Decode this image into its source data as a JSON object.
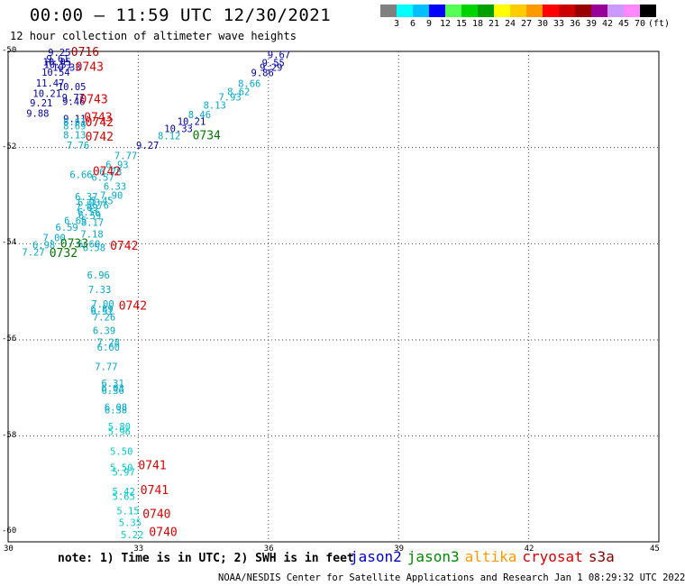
{
  "header": {
    "title": "00:00 – 11:59 UTC 12/30/2021",
    "subtitle": "12 hour collection of altimeter wave heights"
  },
  "colorbar": {
    "colors": [
      "#808080",
      "#00ffff",
      "#00bfff",
      "#0000ff",
      "#55ff55",
      "#00d400",
      "#00a000",
      "#ffff00",
      "#ffcc00",
      "#ff9900",
      "#ff0000",
      "#cc0000",
      "#990000",
      "#990099",
      "#cc99ff",
      "#ff88ff",
      "#000000"
    ],
    "labels": [
      "3",
      "6",
      "9",
      "12",
      "15",
      "18",
      "21",
      "24",
      "27",
      "30",
      "33",
      "36",
      "39",
      "42",
      "45",
      "70",
      "(ft)"
    ]
  },
  "axes": {
    "lat_labels": [
      "-50",
      "-52",
      "-54",
      "-56",
      "-58",
      "-60"
    ],
    "lon_labels": [
      "30",
      "33",
      "36",
      "39",
      "42",
      "45"
    ]
  },
  "map_data": {
    "extent": {
      "lon": [
        30,
        45
      ],
      "lat": [
        -60.2,
        -50
      ]
    },
    "swh_points": [
      {
        "text": "9.25",
        "lon": 30.92,
        "lat": -50.02,
        "color": "#0000aa"
      },
      {
        "text": "9.61",
        "lon": 30.88,
        "lat": -50.15,
        "color": "#0000aa"
      },
      {
        "text": "10.05",
        "lon": 30.8,
        "lat": -50.22,
        "color": "#0000aa"
      },
      {
        "text": "10.51",
        "lon": 30.82,
        "lat": -50.27,
        "color": "#0000aa"
      },
      {
        "text": "10.33",
        "lon": 31.02,
        "lat": -50.33,
        "color": "#0000aa"
      },
      {
        "text": "10.54",
        "lon": 30.77,
        "lat": -50.43,
        "color": "#0000aa"
      },
      {
        "text": "11.47",
        "lon": 30.64,
        "lat": -50.66,
        "color": "#0000aa"
      },
      {
        "text": "10.05",
        "lon": 31.14,
        "lat": -50.73,
        "color": "#0000aa"
      },
      {
        "text": "10.21",
        "lon": 30.57,
        "lat": -50.87,
        "color": "#0000aa"
      },
      {
        "text": "9.77",
        "lon": 31.24,
        "lat": -50.96,
        "color": "#0000aa"
      },
      {
        "text": "9.46",
        "lon": 31.25,
        "lat": -51.04,
        "color": "#0000aa"
      },
      {
        "text": "9.21",
        "lon": 30.5,
        "lat": -51.07,
        "color": "#0000aa"
      },
      {
        "text": "9.88",
        "lon": 30.42,
        "lat": -51.28,
        "color": "#0000aa"
      },
      {
        "text": "9.11",
        "lon": 31.27,
        "lat": -51.4,
        "color": "#0000aa"
      },
      {
        "text": "8.61",
        "lon": 31.27,
        "lat": -51.46,
        "color": "#00aacc"
      },
      {
        "text": "8.69",
        "lon": 31.27,
        "lat": -51.55,
        "color": "#00aacc"
      },
      {
        "text": "8.13",
        "lon": 31.27,
        "lat": -51.73,
        "color": "#00aacc"
      },
      {
        "text": "7.76",
        "lon": 31.35,
        "lat": -51.95,
        "color": "#00aacc"
      },
      {
        "text": "6.66",
        "lon": 31.42,
        "lat": -52.56,
        "color": "#00aacc"
      },
      {
        "text": "6.37",
        "lon": 31.54,
        "lat": -53.02,
        "color": "#00aacc"
      },
      {
        "text": "7.90",
        "lon": 32.12,
        "lat": -52.99,
        "color": "#00aacc"
      },
      {
        "text": "6.03",
        "lon": 31.6,
        "lat": -53.14,
        "color": "#00aacc"
      },
      {
        "text": "5.45",
        "lon": 31.9,
        "lat": -53.1,
        "color": "#00aacc"
      },
      {
        "text": "7.69",
        "lon": 31.55,
        "lat": -53.24,
        "color": "#00aacc"
      },
      {
        "text": "5.76",
        "lon": 31.8,
        "lat": -53.2,
        "color": "#00aacc"
      },
      {
        "text": "6.56",
        "lon": 31.6,
        "lat": -53.34,
        "color": "#00aacc"
      },
      {
        "text": "6.59",
        "lon": 31.62,
        "lat": -53.41,
        "color": "#00aacc"
      },
      {
        "text": "6.65",
        "lon": 31.29,
        "lat": -53.52,
        "color": "#00aacc"
      },
      {
        "text": "8.17",
        "lon": 31.68,
        "lat": -53.55,
        "color": "#00aacc"
      },
      {
        "text": "6.59",
        "lon": 31.09,
        "lat": -53.66,
        "color": "#00aacc"
      },
      {
        "text": "7.18",
        "lon": 31.67,
        "lat": -53.8,
        "color": "#00aacc"
      },
      {
        "text": "7.00",
        "lon": 30.8,
        "lat": -53.87,
        "color": "#00aacc"
      },
      {
        "text": "6.98",
        "lon": 30.56,
        "lat": -54.02,
        "color": "#00aacc"
      },
      {
        "text": "6.60",
        "lon": 31.6,
        "lat": -54.0,
        "color": "#00aacc"
      },
      {
        "text": "6.58",
        "lon": 31.72,
        "lat": -54.08,
        "color": "#00aacc"
      },
      {
        "text": "7.27",
        "lon": 30.32,
        "lat": -54.17,
        "color": "#00aacc"
      },
      {
        "text": "6.96",
        "lon": 31.82,
        "lat": -54.65,
        "color": "#00aacc"
      },
      {
        "text": "7.33",
        "lon": 31.85,
        "lat": -54.95,
        "color": "#00aacc"
      },
      {
        "text": "7.00",
        "lon": 31.92,
        "lat": -55.25,
        "color": "#00aacc"
      },
      {
        "text": "6.89",
        "lon": 31.9,
        "lat": -55.35,
        "color": "#00aacc"
      },
      {
        "text": "6.51",
        "lon": 31.9,
        "lat": -55.4,
        "color": "#00aacc"
      },
      {
        "text": "7.26",
        "lon": 31.95,
        "lat": -55.52,
        "color": "#00aacc"
      },
      {
        "text": "6.39",
        "lon": 31.95,
        "lat": -55.8,
        "color": "#00aacc"
      },
      {
        "text": "7.28",
        "lon": 32.05,
        "lat": -56.05,
        "color": "#00aacc"
      },
      {
        "text": "6.60",
        "lon": 32.05,
        "lat": -56.15,
        "color": "#00aacc"
      },
      {
        "text": "7.77",
        "lon": 32.0,
        "lat": -56.55,
        "color": "#00aacc"
      },
      {
        "text": "6.31",
        "lon": 32.15,
        "lat": -56.9,
        "color": "#00aacc"
      },
      {
        "text": "6.03",
        "lon": 32.15,
        "lat": -57.0,
        "color": "#00aacc"
      },
      {
        "text": "6.36",
        "lon": 32.15,
        "lat": -57.05,
        "color": "#00aacc"
      },
      {
        "text": "6.08",
        "lon": 32.22,
        "lat": -57.4,
        "color": "#00aacc"
      },
      {
        "text": "6.38",
        "lon": 32.22,
        "lat": -57.45,
        "color": "#00aacc"
      },
      {
        "text": "5.80",
        "lon": 32.3,
        "lat": -57.8,
        "color": "#00cccc"
      },
      {
        "text": "5.96",
        "lon": 32.3,
        "lat": -57.9,
        "color": "#00cccc"
      },
      {
        "text": "5.50",
        "lon": 32.35,
        "lat": -58.32,
        "color": "#00cccc"
      },
      {
        "text": "5.50",
        "lon": 32.35,
        "lat": -58.65,
        "color": "#00cccc"
      },
      {
        "text": "5.97",
        "lon": 32.4,
        "lat": -58.75,
        "color": "#00cccc"
      },
      {
        "text": "5.42",
        "lon": 32.4,
        "lat": -59.15,
        "color": "#00cccc"
      },
      {
        "text": "5.65",
        "lon": 32.4,
        "lat": -59.25,
        "color": "#00cccc"
      },
      {
        "text": "5.15",
        "lon": 32.5,
        "lat": -59.55,
        "color": "#00cccc"
      },
      {
        "text": "5.35",
        "lon": 32.55,
        "lat": -59.8,
        "color": "#00cccc"
      },
      {
        "text": "5.22",
        "lon": 32.6,
        "lat": -60.05,
        "color": "#00cccc"
      },
      {
        "text": "9.67",
        "lon": 35.98,
        "lat": -50.07,
        "color": "#0000aa"
      },
      {
        "text": "9.55",
        "lon": 35.85,
        "lat": -50.23,
        "color": "#0000aa"
      },
      {
        "text": "9.29",
        "lon": 35.8,
        "lat": -50.33,
        "color": "#0000aa"
      },
      {
        "text": "9.86",
        "lon": 35.6,
        "lat": -50.44,
        "color": "#0000aa"
      },
      {
        "text": "8.66",
        "lon": 35.3,
        "lat": -50.67,
        "color": "#00aacc"
      },
      {
        "text": "8.62",
        "lon": 35.05,
        "lat": -50.83,
        "color": "#00aacc"
      },
      {
        "text": "7.93",
        "lon": 34.85,
        "lat": -50.95,
        "color": "#00aacc"
      },
      {
        "text": "8.13",
        "lon": 34.5,
        "lat": -51.12,
        "color": "#00aacc"
      },
      {
        "text": "8.46",
        "lon": 34.15,
        "lat": -51.31,
        "color": "#00aacc"
      },
      {
        "text": "10.21",
        "lon": 33.9,
        "lat": -51.45,
        "color": "#0000aa"
      },
      {
        "text": "10.33",
        "lon": 33.6,
        "lat": -51.6,
        "color": "#0000aa"
      },
      {
        "text": "8.12",
        "lon": 33.45,
        "lat": -51.75,
        "color": "#00aacc"
      },
      {
        "text": "9.27",
        "lon": 32.95,
        "lat": -51.95,
        "color": "#0000aa"
      },
      {
        "text": "7.77",
        "lon": 32.45,
        "lat": -52.17,
        "color": "#00aacc"
      },
      {
        "text": "6.93",
        "lon": 32.25,
        "lat": -52.35,
        "color": "#00aacc"
      },
      {
        "text": "6.78",
        "lon": 32.1,
        "lat": -52.5,
        "color": "#00aacc"
      },
      {
        "text": "6.57",
        "lon": 31.92,
        "lat": -52.62,
        "color": "#00aacc"
      },
      {
        "text": "6.33",
        "lon": 32.2,
        "lat": -52.8,
        "color": "#00aacc"
      }
    ],
    "times": [
      {
        "text": "0716",
        "lon": 31.45,
        "lat": -50.02,
        "color": "#aa0000"
      },
      {
        "text": "0743",
        "lon": 31.55,
        "lat": -50.33,
        "color": "#dd0000"
      },
      {
        "text": "0743",
        "lon": 31.65,
        "lat": -51.0,
        "color": "#dd0000"
      },
      {
        "text": "0743",
        "lon": 31.75,
        "lat": -51.38,
        "color": "#dd0000"
      },
      {
        "text": "0742",
        "lon": 31.78,
        "lat": -51.48,
        "color": "#dd0000"
      },
      {
        "text": "0742",
        "lon": 31.78,
        "lat": -51.78,
        "color": "#dd0000"
      },
      {
        "text": "0742",
        "lon": 31.95,
        "lat": -52.5,
        "color": "#dd0000"
      },
      {
        "text": "0733",
        "lon": 31.2,
        "lat": -54.0,
        "color": "#007700"
      },
      {
        "text": "0732",
        "lon": 30.95,
        "lat": -54.2,
        "color": "#007700"
      },
      {
        "text": "0742",
        "lon": 32.35,
        "lat": -54.05,
        "color": "#dd0000"
      },
      {
        "text": "0742",
        "lon": 32.55,
        "lat": -55.3,
        "color": "#dd0000"
      },
      {
        "text": "0734",
        "lon": 34.25,
        "lat": -51.75,
        "color": "#007700"
      },
      {
        "text": "0741",
        "lon": 33.0,
        "lat": -58.62,
        "color": "#dd0000"
      },
      {
        "text": "0741",
        "lon": 33.05,
        "lat": -59.13,
        "color": "#dd0000"
      },
      {
        "text": "0740",
        "lon": 33.1,
        "lat": -59.63,
        "color": "#dd0000"
      },
      {
        "text": "0740",
        "lon": 33.25,
        "lat": -60.0,
        "color": "#dd0000"
      }
    ]
  },
  "note": "note: 1) Time is in UTC; 2) SWH is in feet",
  "legend": [
    {
      "label": "jason2",
      "color": "#0000cc"
    },
    {
      "label": "jason3",
      "color": "#008800"
    },
    {
      "label": "altika",
      "color": "#ff9900"
    },
    {
      "label": "cryosat",
      "color": "#dd0000"
    },
    {
      "label": "s3a",
      "color": "#880000"
    }
  ],
  "footer": "NOAA/NESDIS Center for Satellite Applications and Research   Jan  1 08:29:32 UTC 2022"
}
